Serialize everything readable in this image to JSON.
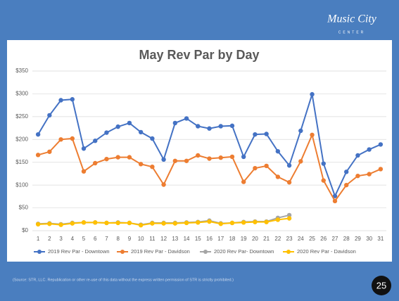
{
  "logo": {
    "text": "Music City",
    "subtext": "CENTER"
  },
  "footnote": "(Source: STR, LLC. Republication or other re-use of this data without the express written permission of STR is strictly prohibited.)",
  "page_number": "25",
  "chart_data": {
    "type": "line",
    "title": "May Rev Par by Day",
    "categories": [
      "1",
      "2",
      "3",
      "4",
      "5",
      "6",
      "7",
      "8",
      "9",
      "10",
      "11",
      "12",
      "13",
      "14",
      "15",
      "16",
      "17",
      "18",
      "19",
      "20",
      "21",
      "22",
      "23",
      "24",
      "25",
      "26",
      "27",
      "28",
      "29",
      "30",
      "31"
    ],
    "ylim": [
      0,
      350
    ],
    "yticks": [
      {
        "value": 0,
        "label": "$0"
      },
      {
        "value": 50,
        "label": "$50"
      },
      {
        "value": 100,
        "label": "$100"
      },
      {
        "value": 150,
        "label": "$150"
      },
      {
        "value": 200,
        "label": "$200"
      },
      {
        "value": 250,
        "label": "$250"
      },
      {
        "value": 300,
        "label": "$300"
      },
      {
        "value": 350,
        "label": "$350"
      }
    ],
    "grid": true,
    "legend": "bottom",
    "series": [
      {
        "name": "2019 Rev Par - Downtown",
        "color": "#4472c4",
        "values": [
          211,
          253,
          286,
          288,
          180,
          197,
          215,
          228,
          236,
          216,
          202,
          156,
          236,
          246,
          229,
          224,
          229,
          230,
          162,
          211,
          212,
          174,
          143,
          219,
          299,
          147,
          76,
          129,
          165,
          178,
          189
        ]
      },
      {
        "name": "2019 Rev Par - Davidson",
        "color": "#ed7d31",
        "values": [
          166,
          173,
          200,
          202,
          130,
          148,
          157,
          161,
          161,
          146,
          140,
          101,
          153,
          153,
          165,
          158,
          160,
          162,
          107,
          137,
          142,
          118,
          106,
          152,
          210,
          110,
          65,
          100,
          120,
          124,
          135
        ]
      },
      {
        "name": "2020 Rev Par- Downtown",
        "color": "#a5a5a5",
        "values": [
          15,
          16,
          14,
          17,
          18,
          18,
          17,
          18,
          17,
          13,
          17,
          17,
          17,
          18,
          19,
          22,
          16,
          17,
          19,
          20,
          20,
          28,
          34,
          null,
          null,
          null,
          null,
          null,
          null,
          null,
          null
        ]
      },
      {
        "name": "2020 Rev Par - Davidson",
        "color": "#ffc000",
        "values": [
          14,
          15,
          13,
          16,
          18,
          18,
          17,
          17,
          17,
          12,
          16,
          16,
          16,
          17,
          18,
          20,
          15,
          17,
          18,
          19,
          19,
          24,
          27,
          null,
          null,
          null,
          null,
          null,
          null,
          null,
          null
        ]
      }
    ]
  }
}
